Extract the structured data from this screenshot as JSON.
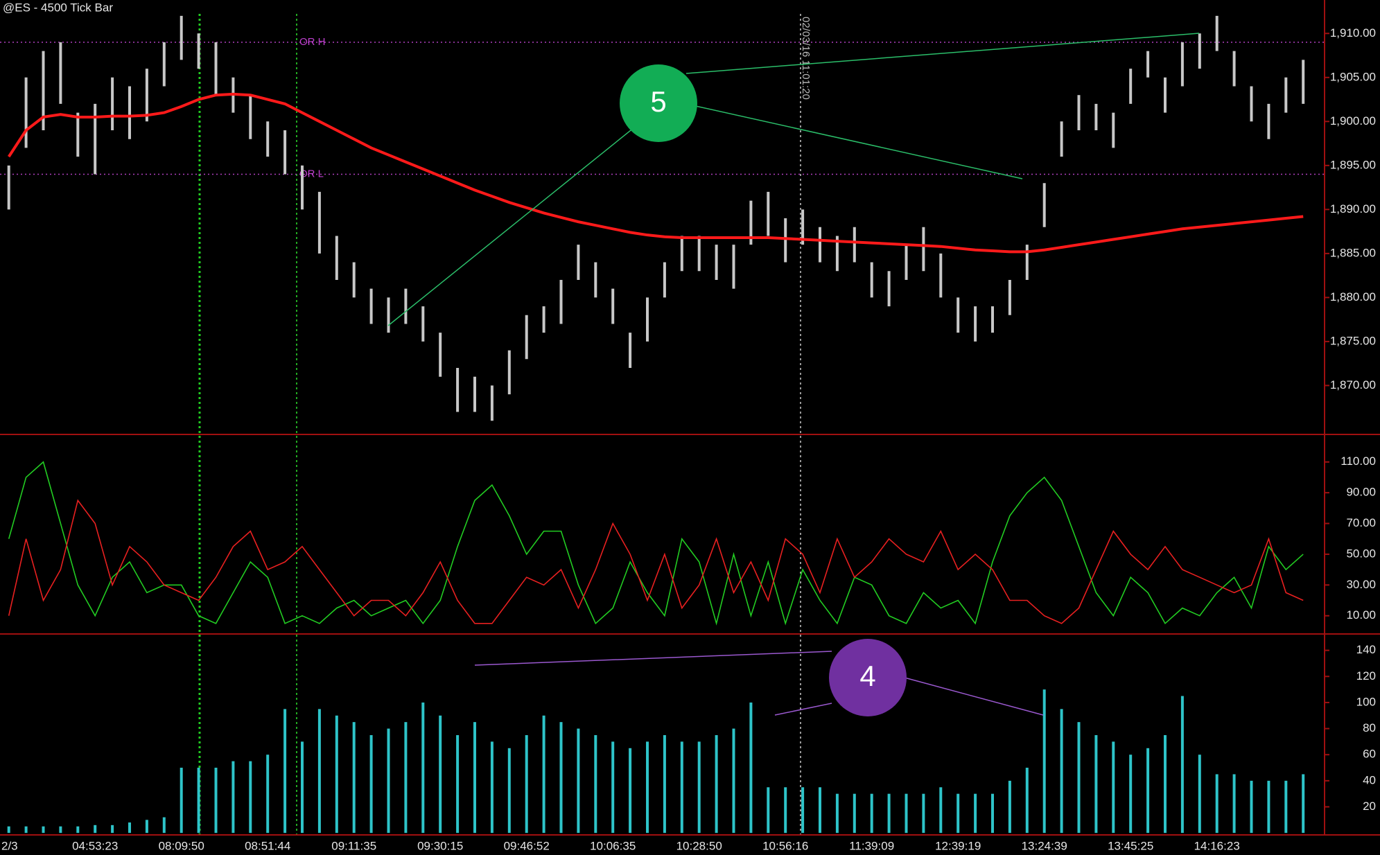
{
  "chart_data": [
    {
      "type": "ohlc",
      "title": "@ES - 4500 Tick Bar",
      "color": "#c8c8c8",
      "ma_color": "#ff1a1a",
      "high": [
        1895,
        1905,
        1908,
        1909,
        1901,
        1902,
        1905,
        1904,
        1906,
        1909,
        1912,
        1910,
        1909,
        1905,
        1903,
        1900,
        1899,
        1895,
        1892,
        1887,
        1884,
        1881,
        1880,
        1881,
        1879,
        1876,
        1872,
        1871,
        1870,
        1874,
        1878,
        1879,
        1882,
        1886,
        1884,
        1881,
        1876,
        1880,
        1884,
        1887,
        1887,
        1886,
        1886,
        1891,
        1892,
        1889,
        1890,
        1888,
        1887,
        1888,
        1884,
        1883,
        1886,
        1888,
        1885,
        1880,
        1879,
        1879,
        1882,
        1886,
        1893,
        1900,
        1903,
        1902,
        1901,
        1906,
        1908,
        1905,
        1909,
        1910,
        1912,
        1908,
        1904,
        1902,
        1905,
        1907
      ],
      "low": [
        1890,
        1897,
        1899,
        1902,
        1896,
        1894,
        1899,
        1898,
        1900,
        1904,
        1907,
        1906,
        1903,
        1901,
        1898,
        1896,
        1894,
        1890,
        1885,
        1882,
        1880,
        1877,
        1876,
        1877,
        1875,
        1871,
        1867,
        1867,
        1866,
        1869,
        1873,
        1876,
        1877,
        1882,
        1880,
        1877,
        1872,
        1875,
        1880,
        1883,
        1883,
        1882,
        1881,
        1886,
        1887,
        1884,
        1886,
        1884,
        1883,
        1884,
        1880,
        1879,
        1882,
        1883,
        1880,
        1876,
        1875,
        1876,
        1878,
        1882,
        1888,
        1896,
        1899,
        1899,
        1897,
        1902,
        1905,
        1901,
        1904,
        1906,
        1908,
        1904,
        1900,
        1898,
        1901,
        1902
      ],
      "ma": [
        1896,
        1899,
        1900.5,
        1900.8,
        1900.5,
        1900.5,
        1900.6,
        1900.6,
        1900.7,
        1901,
        1901.7,
        1902.5,
        1903,
        1903.1,
        1903,
        1902.5,
        1902,
        1901,
        1900,
        1899,
        1898,
        1897,
        1896.2,
        1895.4,
        1894.6,
        1893.8,
        1893,
        1892.2,
        1891.5,
        1890.8,
        1890.2,
        1889.6,
        1889.1,
        1888.6,
        1888.2,
        1887.8,
        1887.4,
        1887.1,
        1886.9,
        1886.8,
        1886.8,
        1886.8,
        1886.8,
        1886.8,
        1886.8,
        1886.7,
        1886.6,
        1886.5,
        1886.4,
        1886.3,
        1886.2,
        1886.1,
        1886,
        1885.9,
        1885.8,
        1885.6,
        1885.4,
        1885.3,
        1885.2,
        1885.2,
        1885.4,
        1885.7,
        1886,
        1886.3,
        1886.6,
        1886.9,
        1887.2,
        1887.5,
        1887.8,
        1888,
        1888.2,
        1888.4,
        1888.6,
        1888.8,
        1889,
        1889.2
      ],
      "levels": [
        {
          "label": "OR H",
          "value": 1909
        },
        {
          "label": "OR L",
          "value": 1894
        }
      ],
      "ylim": [
        1864.6,
        1913.8
      ],
      "yticks": [
        {
          "value": 1870,
          "label": "1,870.00"
        },
        {
          "value": 1875,
          "label": "1,875.00"
        },
        {
          "value": 1880,
          "label": "1,880.00"
        },
        {
          "value": 1885,
          "label": "1,885.00"
        },
        {
          "value": 1890,
          "label": "1,890.00"
        },
        {
          "value": 1895,
          "label": "1,895.00"
        },
        {
          "value": 1900,
          "label": "1,900.00"
        },
        {
          "value": 1905,
          "label": "1,905.00"
        },
        {
          "value": 1910,
          "label": "1,910.00"
        }
      ],
      "vline_label": "02/03/16 11:01:20",
      "annotations": [
        "5",
        "4"
      ]
    },
    {
      "type": "line",
      "series": [
        {
          "color": "#22cc22",
          "values": [
            60,
            100,
            110,
            70,
            30,
            10,
            35,
            45,
            25,
            30,
            30,
            10,
            5,
            25,
            45,
            35,
            5,
            10,
            5,
            15,
            20,
            10,
            15,
            20,
            5,
            20,
            55,
            85,
            95,
            75,
            50,
            65,
            65,
            30,
            5,
            15,
            45,
            25,
            10,
            60,
            45,
            5,
            50,
            10,
            45,
            5,
            40,
            20,
            5,
            35,
            30,
            10,
            5,
            25,
            15,
            20,
            5,
            45,
            75,
            90,
            100,
            85,
            55,
            25,
            10,
            35,
            25,
            5,
            15,
            10,
            25,
            35,
            15,
            55,
            40,
            50
          ]
        },
        {
          "color": "#e82020",
          "values": [
            10,
            60,
            20,
            40,
            85,
            70,
            30,
            55,
            45,
            30,
            25,
            20,
            35,
            55,
            65,
            40,
            45,
            55,
            40,
            25,
            10,
            20,
            20,
            10,
            25,
            45,
            20,
            5,
            5,
            20,
            35,
            30,
            40,
            15,
            40,
            70,
            50,
            20,
            50,
            15,
            30,
            60,
            25,
            45,
            20,
            60,
            50,
            25,
            60,
            35,
            45,
            60,
            50,
            45,
            65,
            40,
            50,
            40,
            20,
            20,
            10,
            5,
            15,
            40,
            65,
            50,
            40,
            55,
            40,
            35,
            30,
            25,
            30,
            60,
            25,
            20
          ]
        }
      ],
      "ylim": [
        -1.4,
        127
      ],
      "yticks": [
        {
          "value": 10,
          "label": "10.00"
        },
        {
          "value": 30,
          "label": "30.00"
        },
        {
          "value": 50,
          "label": "50.00"
        },
        {
          "value": 70,
          "label": "70.00"
        },
        {
          "value": 90,
          "label": "90.00"
        },
        {
          "value": 110,
          "label": "110.00"
        }
      ]
    },
    {
      "type": "bar",
      "color": "#2ec4c9",
      "categories": [
        "2/3",
        null,
        null,
        null,
        null,
        "04:53:23",
        null,
        null,
        null,
        null,
        "08:09:50",
        null,
        null,
        null,
        null,
        "08:51:44",
        null,
        null,
        null,
        null,
        "09:11:35",
        null,
        null,
        null,
        null,
        "09:30:15",
        null,
        null,
        null,
        null,
        "09:46:52",
        null,
        null,
        null,
        null,
        "10:06:35",
        null,
        null,
        null,
        null,
        "10:28:50",
        null,
        null,
        null,
        null,
        "10:56:16",
        null,
        null,
        null,
        null,
        "11:39:09",
        null,
        null,
        null,
        null,
        "12:39:19",
        null,
        null,
        null,
        null,
        "13:24:39",
        null,
        null,
        null,
        null,
        "13:45:25",
        null,
        null,
        null,
        null,
        "14:16:23",
        null,
        null,
        null,
        null,
        null
      ],
      "values": [
        5,
        5,
        5,
        5,
        5,
        6,
        6,
        8,
        10,
        12,
        50,
        50,
        50,
        55,
        55,
        60,
        95,
        70,
        95,
        90,
        85,
        75,
        80,
        85,
        100,
        90,
        75,
        85,
        70,
        65,
        75,
        90,
        85,
        80,
        75,
        70,
        65,
        70,
        75,
        70,
        70,
        75,
        80,
        100,
        35,
        35,
        35,
        35,
        30,
        30,
        30,
        30,
        30,
        30,
        35,
        30,
        30,
        30,
        40,
        50,
        110,
        95,
        85,
        75,
        70,
        60,
        65,
        75,
        105,
        60,
        45,
        45,
        40,
        40,
        40,
        45
      ],
      "ylim": [
        -1,
        151.5
      ],
      "yticks": [
        20,
        40,
        60,
        80,
        100,
        120,
        140
      ]
    }
  ]
}
